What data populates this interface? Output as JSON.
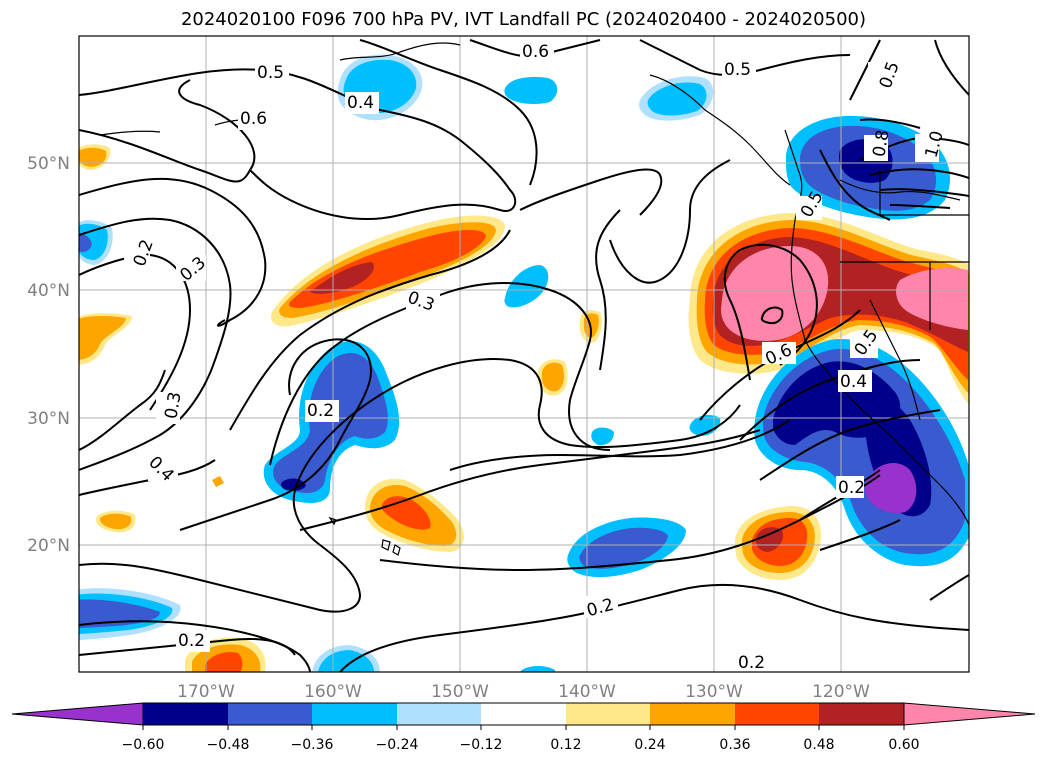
{
  "title": "2024020100 F096 700 hPa PV, IVT Landfall PC (2024020400 - 2024020500)",
  "map": {
    "lon_labels": [
      "170°W",
      "160°W",
      "150°W",
      "140°W",
      "130°W",
      "120°W"
    ],
    "lat_labels": [
      "50°N",
      "40°N",
      "30°N",
      "20°N"
    ],
    "grid": true
  },
  "contours": {
    "variable": "700 hPa PV",
    "labels": [
      "0.6",
      "0.5",
      "0.4",
      "0.6",
      "0.5",
      "0.5",
      "0.2",
      "0.3",
      "0.3",
      "0.2",
      "0.3",
      "0.4",
      "0.2",
      "0.6",
      "0.5",
      "0.4",
      "0.2",
      "0.2",
      "0.2",
      "0.5",
      "1.0",
      "0.8"
    ]
  },
  "shading": {
    "variable": "IVT Landfall PC",
    "colors": {
      "n060": "#9932cc",
      "n048": "#00008b",
      "n036": "#3a5bcf",
      "n024": "#00bfff",
      "n012": "#b0e0ff",
      "zero": "#ffffff",
      "p012": "#ffe88a",
      "p024": "#ffa500",
      "p036": "#ff4500",
      "p048": "#b22222",
      "p060": "#ff85aa"
    }
  },
  "colorbar": {
    "labels": [
      "−0.60",
      "−0.48",
      "−0.36",
      "−0.24",
      "−0.12",
      "0.12",
      "0.24",
      "0.36",
      "0.48",
      "0.60"
    ],
    "colors": [
      "#9932cc",
      "#00008b",
      "#3a5bcf",
      "#00bfff",
      "#b0e0ff",
      "#ffffff",
      "#ffe88a",
      "#ffa500",
      "#ff4500",
      "#b22222",
      "#ff85aa"
    ]
  }
}
